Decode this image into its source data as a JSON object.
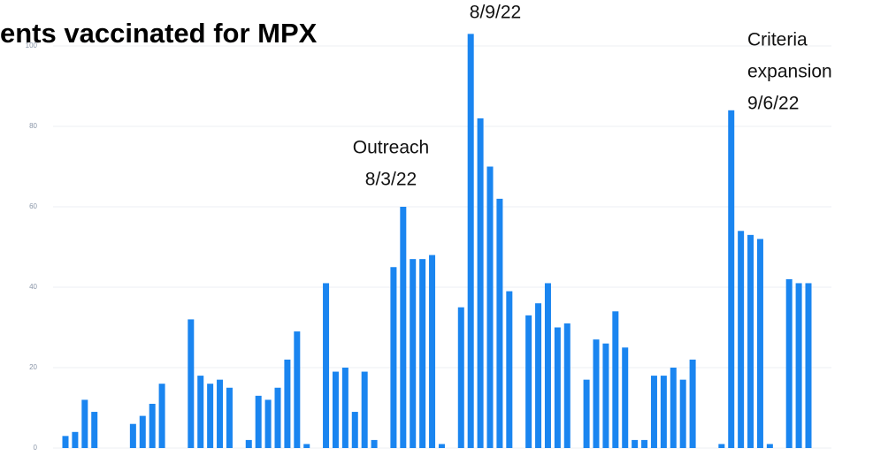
{
  "chart_data": {
    "type": "bar",
    "title": "ents vaccinated for MPX",
    "categories": [
      null,
      null,
      null,
      null,
      null,
      null,
      null,
      null,
      null,
      null,
      null,
      null,
      null,
      null,
      null,
      null,
      null,
      null,
      null,
      null,
      null,
      null,
      null,
      null,
      null,
      null,
      null,
      null,
      null,
      null,
      null,
      null,
      null,
      null,
      null,
      null,
      null,
      null,
      null,
      null,
      null,
      null,
      null,
      null,
      null,
      null,
      null,
      null,
      null,
      null,
      null,
      null,
      null,
      null,
      null,
      null,
      null,
      null,
      null,
      null,
      null,
      null,
      null,
      null,
      null,
      null,
      null,
      null,
      null,
      null,
      null,
      null,
      null,
      null,
      null,
      null,
      null,
      null
    ],
    "values": [
      3,
      4,
      12,
      9,
      0,
      0,
      0,
      6,
      8,
      11,
      16,
      0,
      0,
      32,
      18,
      16,
      17,
      15,
      0,
      2,
      13,
      12,
      15,
      22,
      29,
      1,
      0,
      41,
      19,
      20,
      9,
      19,
      2,
      0,
      45,
      60,
      47,
      47,
      48,
      1,
      0,
      35,
      103,
      82,
      70,
      62,
      39,
      0,
      33,
      36,
      41,
      30,
      31,
      0,
      17,
      27,
      26,
      34,
      25,
      2,
      2,
      18,
      18,
      20,
      17,
      22,
      0,
      0,
      1,
      84,
      54,
      53,
      52,
      1,
      0,
      42,
      41,
      41
    ],
    "color": "#1a85f0",
    "ylim": [
      0,
      104
    ],
    "yticks": [
      0,
      20,
      40,
      60,
      80,
      100
    ],
    "grid": true,
    "annotations": [
      {
        "lines": [
          "Outreach",
          "8/3/22"
        ]
      },
      {
        "lines": [
          "8/9/22"
        ]
      },
      {
        "lines": [
          "Criteria",
          "expansion",
          "9/6/22"
        ]
      }
    ]
  }
}
